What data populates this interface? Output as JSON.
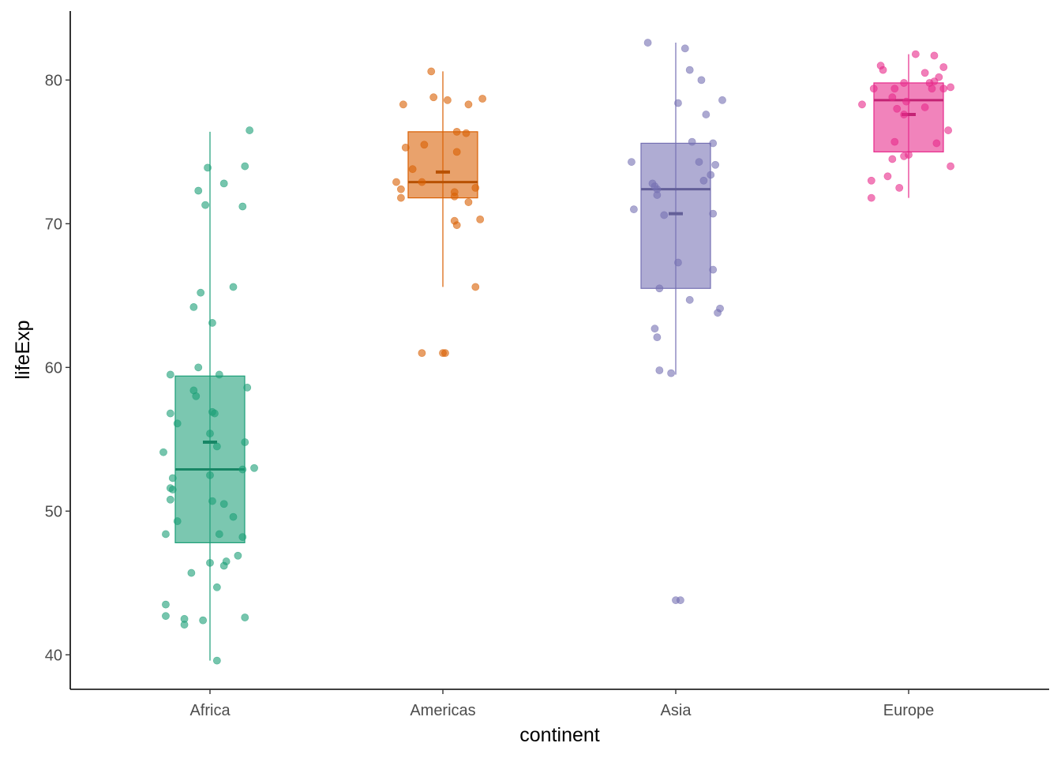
{
  "chart_data": {
    "type": "box",
    "xlabel": "continent",
    "ylabel": "lifeExp",
    "categories": [
      "Africa",
      "Americas",
      "Asia",
      "Europe"
    ],
    "ylim": [
      37.6,
      84.8
    ],
    "yticks": [
      40,
      50,
      60,
      70,
      80
    ],
    "grid": false,
    "legend": "none",
    "colors": [
      "#1B9E77",
      "#D95F02",
      "#7570B3",
      "#E7298A"
    ],
    "boxes": [
      {
        "category": "Africa",
        "q1": 47.8,
        "median": 52.9,
        "q3": 59.4,
        "whisker_low": 39.6,
        "whisker_high": 76.4,
        "mean": 54.8
      },
      {
        "category": "Americas",
        "q1": 71.8,
        "median": 72.9,
        "q3": 76.4,
        "whisker_low": 65.6,
        "whisker_high": 80.6,
        "mean": 73.6
      },
      {
        "category": "Asia",
        "q1": 65.5,
        "median": 72.4,
        "q3": 75.6,
        "whisker_low": 59.5,
        "whisker_high": 82.6,
        "mean": 70.7
      },
      {
        "category": "Europe",
        "q1": 75.0,
        "median": 78.6,
        "q3": 79.8,
        "whisker_low": 71.8,
        "whisker_high": 81.8,
        "mean": 77.6
      }
    ],
    "points": [
      {
        "category": "Africa",
        "jitter": [
          [
            0.17,
            76.5
          ],
          [
            -0.01,
            73.9
          ],
          [
            0.06,
            72.8
          ],
          [
            -0.05,
            72.3
          ],
          [
            0.15,
            74.0
          ],
          [
            -0.02,
            71.3
          ],
          [
            0.14,
            71.2
          ],
          [
            0.1,
            65.6
          ],
          [
            -0.04,
            65.2
          ],
          [
            -0.07,
            64.2
          ],
          [
            0.01,
            63.1
          ],
          [
            -0.05,
            60.0
          ],
          [
            -0.17,
            59.5
          ],
          [
            0.04,
            59.5
          ],
          [
            0.16,
            58.6
          ],
          [
            -0.07,
            58.4
          ],
          [
            -0.06,
            58.0
          ],
          [
            -0.17,
            56.8
          ],
          [
            0.01,
            56.9
          ],
          [
            0.02,
            56.8
          ],
          [
            -0.14,
            56.1
          ],
          [
            0.0,
            55.4
          ],
          [
            0.03,
            54.5
          ],
          [
            0.15,
            54.8
          ],
          [
            -0.2,
            54.1
          ],
          [
            0.0,
            52.5
          ],
          [
            -0.16,
            52.3
          ],
          [
            0.14,
            52.9
          ],
          [
            0.19,
            53.0
          ],
          [
            -0.17,
            51.6
          ],
          [
            -0.16,
            51.5
          ],
          [
            -0.17,
            50.8
          ],
          [
            0.01,
            50.7
          ],
          [
            0.06,
            50.5
          ],
          [
            0.1,
            49.6
          ],
          [
            -0.14,
            49.3
          ],
          [
            -0.19,
            48.4
          ],
          [
            0.04,
            48.4
          ],
          [
            0.14,
            48.2
          ],
          [
            0.12,
            46.9
          ],
          [
            0.0,
            46.4
          ],
          [
            0.07,
            46.5
          ],
          [
            0.06,
            46.2
          ],
          [
            -0.08,
            45.7
          ],
          [
            0.03,
            44.7
          ],
          [
            -0.19,
            43.5
          ],
          [
            -0.19,
            42.7
          ],
          [
            -0.11,
            42.5
          ],
          [
            -0.03,
            42.4
          ],
          [
            0.15,
            42.6
          ],
          [
            -0.11,
            42.1
          ],
          [
            0.03,
            39.6
          ]
        ]
      },
      {
        "category": "Americas",
        "jitter": [
          [
            -0.05,
            80.6
          ],
          [
            0.17,
            78.7
          ],
          [
            -0.17,
            78.3
          ],
          [
            -0.04,
            78.8
          ],
          [
            0.02,
            78.6
          ],
          [
            0.11,
            78.3
          ],
          [
            0.06,
            76.4
          ],
          [
            0.1,
            76.3
          ],
          [
            -0.08,
            75.5
          ],
          [
            -0.16,
            75.3
          ],
          [
            0.06,
            75.0
          ],
          [
            -0.13,
            73.8
          ],
          [
            -0.2,
            72.9
          ],
          [
            -0.09,
            72.9
          ],
          [
            0.14,
            72.5
          ],
          [
            -0.18,
            72.4
          ],
          [
            0.05,
            72.2
          ],
          [
            0.05,
            71.9
          ],
          [
            -0.18,
            71.8
          ],
          [
            0.11,
            71.5
          ],
          [
            0.05,
            70.2
          ],
          [
            0.16,
            70.3
          ],
          [
            0.06,
            69.9
          ],
          [
            0.14,
            65.6
          ],
          [
            -0.09,
            61.0
          ],
          [
            0.0,
            61.0
          ],
          [
            0.01,
            61.0
          ]
        ]
      },
      {
        "category": "Asia",
        "jitter": [
          [
            -0.12,
            82.6
          ],
          [
            0.04,
            82.2
          ],
          [
            0.06,
            80.7
          ],
          [
            0.11,
            80.0
          ],
          [
            0.01,
            78.4
          ],
          [
            0.2,
            78.6
          ],
          [
            0.13,
            77.6
          ],
          [
            0.07,
            75.7
          ],
          [
            0.16,
            75.6
          ],
          [
            -0.19,
            74.3
          ],
          [
            0.1,
            74.3
          ],
          [
            0.17,
            74.1
          ],
          [
            0.15,
            73.4
          ],
          [
            0.12,
            73.0
          ],
          [
            -0.09,
            72.6
          ],
          [
            -0.1,
            72.8
          ],
          [
            -0.08,
            72.4
          ],
          [
            -0.08,
            72.0
          ],
          [
            -0.18,
            71.0
          ],
          [
            0.16,
            70.7
          ],
          [
            -0.05,
            70.6
          ],
          [
            0.01,
            67.3
          ],
          [
            0.16,
            66.8
          ],
          [
            -0.07,
            65.5
          ],
          [
            0.06,
            64.7
          ],
          [
            0.19,
            64.1
          ],
          [
            0.18,
            63.8
          ],
          [
            -0.09,
            62.7
          ],
          [
            -0.08,
            62.1
          ],
          [
            -0.07,
            59.8
          ],
          [
            -0.02,
            59.6
          ],
          [
            0.0,
            43.8
          ],
          [
            0.02,
            43.8
          ]
        ]
      },
      {
        "category": "Europe",
        "jitter": [
          [
            0.03,
            81.8
          ],
          [
            0.11,
            81.7
          ],
          [
            -0.12,
            81.0
          ],
          [
            -0.11,
            80.7
          ],
          [
            0.15,
            80.9
          ],
          [
            0.13,
            80.2
          ],
          [
            0.09,
            79.8
          ],
          [
            0.11,
            79.9
          ],
          [
            0.07,
            80.5
          ],
          [
            -0.02,
            79.8
          ],
          [
            -0.15,
            79.4
          ],
          [
            0.1,
            79.4
          ],
          [
            0.15,
            79.4
          ],
          [
            0.18,
            79.5
          ],
          [
            -0.06,
            79.4
          ],
          [
            -0.07,
            78.8
          ],
          [
            -0.2,
            78.3
          ],
          [
            -0.01,
            78.5
          ],
          [
            0.07,
            78.1
          ],
          [
            -0.05,
            78.0
          ],
          [
            -0.02,
            77.6
          ],
          [
            0.17,
            76.5
          ],
          [
            -0.06,
            75.7
          ],
          [
            0.12,
            75.6
          ],
          [
            0.0,
            74.8
          ],
          [
            -0.02,
            74.7
          ],
          [
            -0.07,
            74.5
          ],
          [
            0.18,
            74.0
          ],
          [
            -0.09,
            73.3
          ],
          [
            -0.16,
            73.0
          ],
          [
            -0.04,
            72.5
          ],
          [
            -0.16,
            71.8
          ]
        ]
      }
    ]
  }
}
